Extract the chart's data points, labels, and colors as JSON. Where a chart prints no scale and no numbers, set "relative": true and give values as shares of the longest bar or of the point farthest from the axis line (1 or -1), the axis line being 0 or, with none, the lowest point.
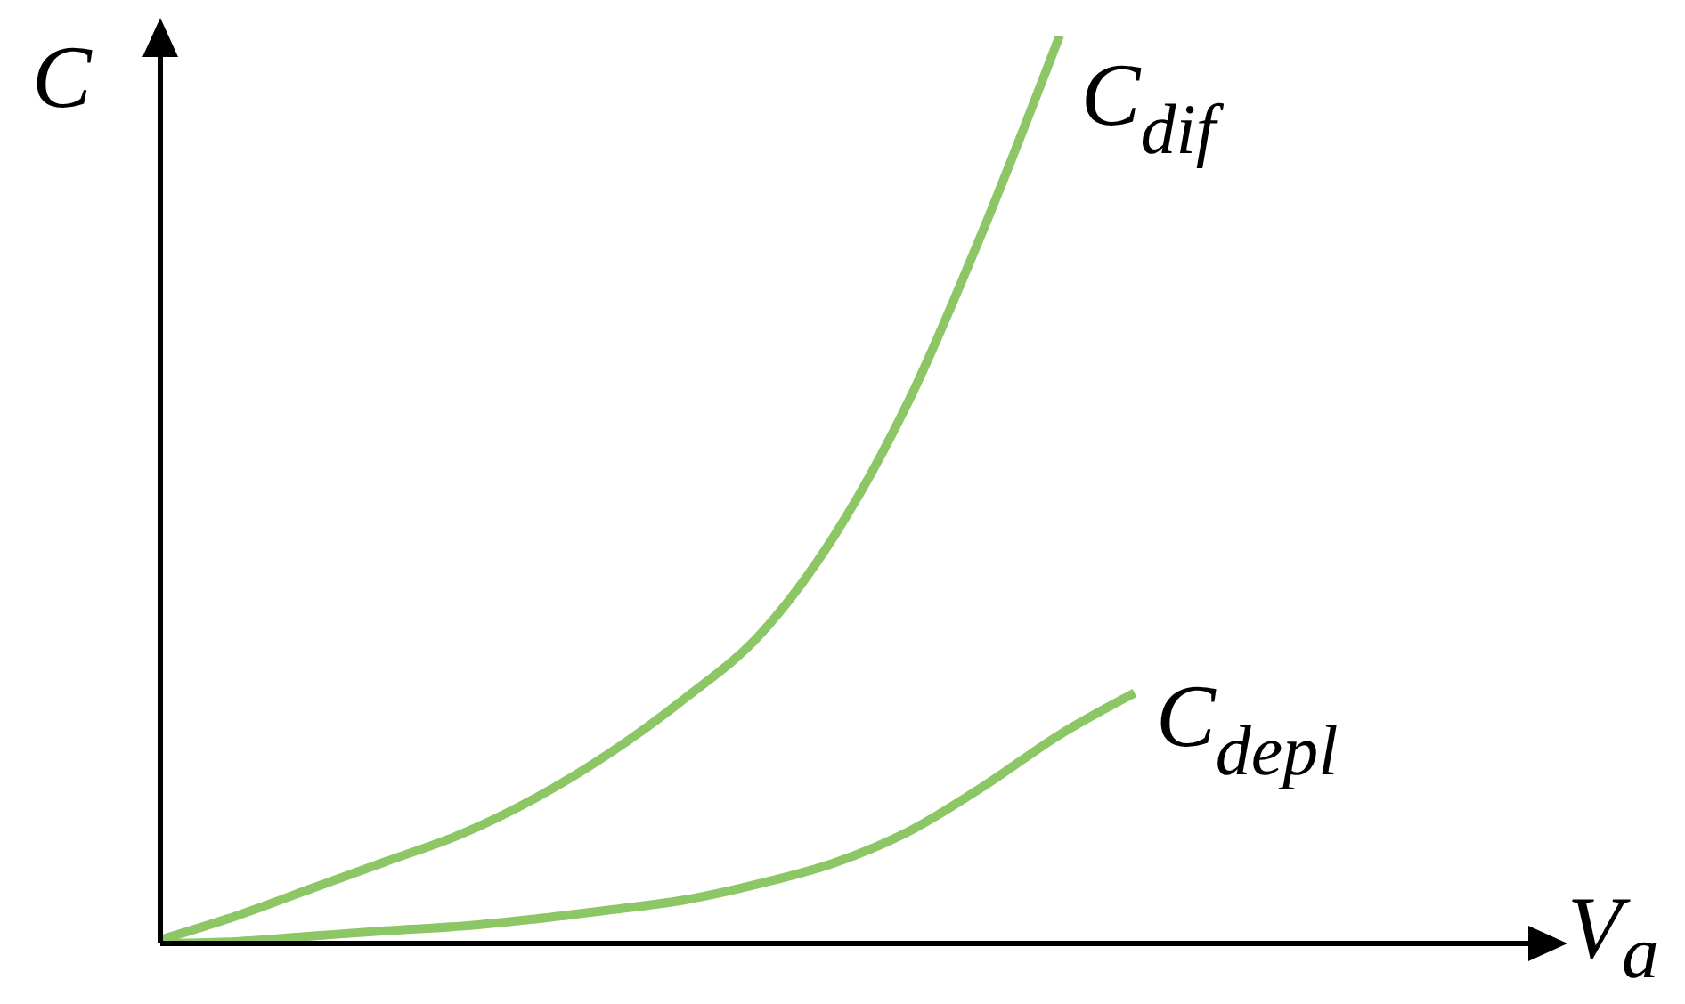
{
  "chart_data": {
    "type": "line",
    "relative": true,
    "ylabel": "C",
    "xlabel": "V$_{a}$",
    "categories": [
      null,
      null,
      null,
      null,
      null,
      null,
      null,
      null,
      null,
      null,
      null,
      null,
      null,
      null,
      null,
      null,
      null,
      null,
      null
    ],
    "series": [
      {
        "name": "C$_{dif}$",
        "color": "#8cc665",
        "values": [
          0.004,
          0.03,
          0.06,
          0.09,
          0.12,
          0.16,
          0.21,
          0.27,
          0.34,
          0.45,
          0.6,
          0.79,
          1,
          null,
          null,
          null,
          null,
          null,
          null
        ]
      },
      {
        "name": "C$_{depl}$",
        "color": "#8cc665",
        "values": [
          0,
          0.002,
          0.008,
          0.014,
          0.019,
          0.027,
          0.037,
          0.048,
          0.066,
          0.089,
          0.124,
          0.174,
          0.23,
          0.276,
          null,
          null,
          null,
          null,
          null
        ]
      }
    ]
  }
}
